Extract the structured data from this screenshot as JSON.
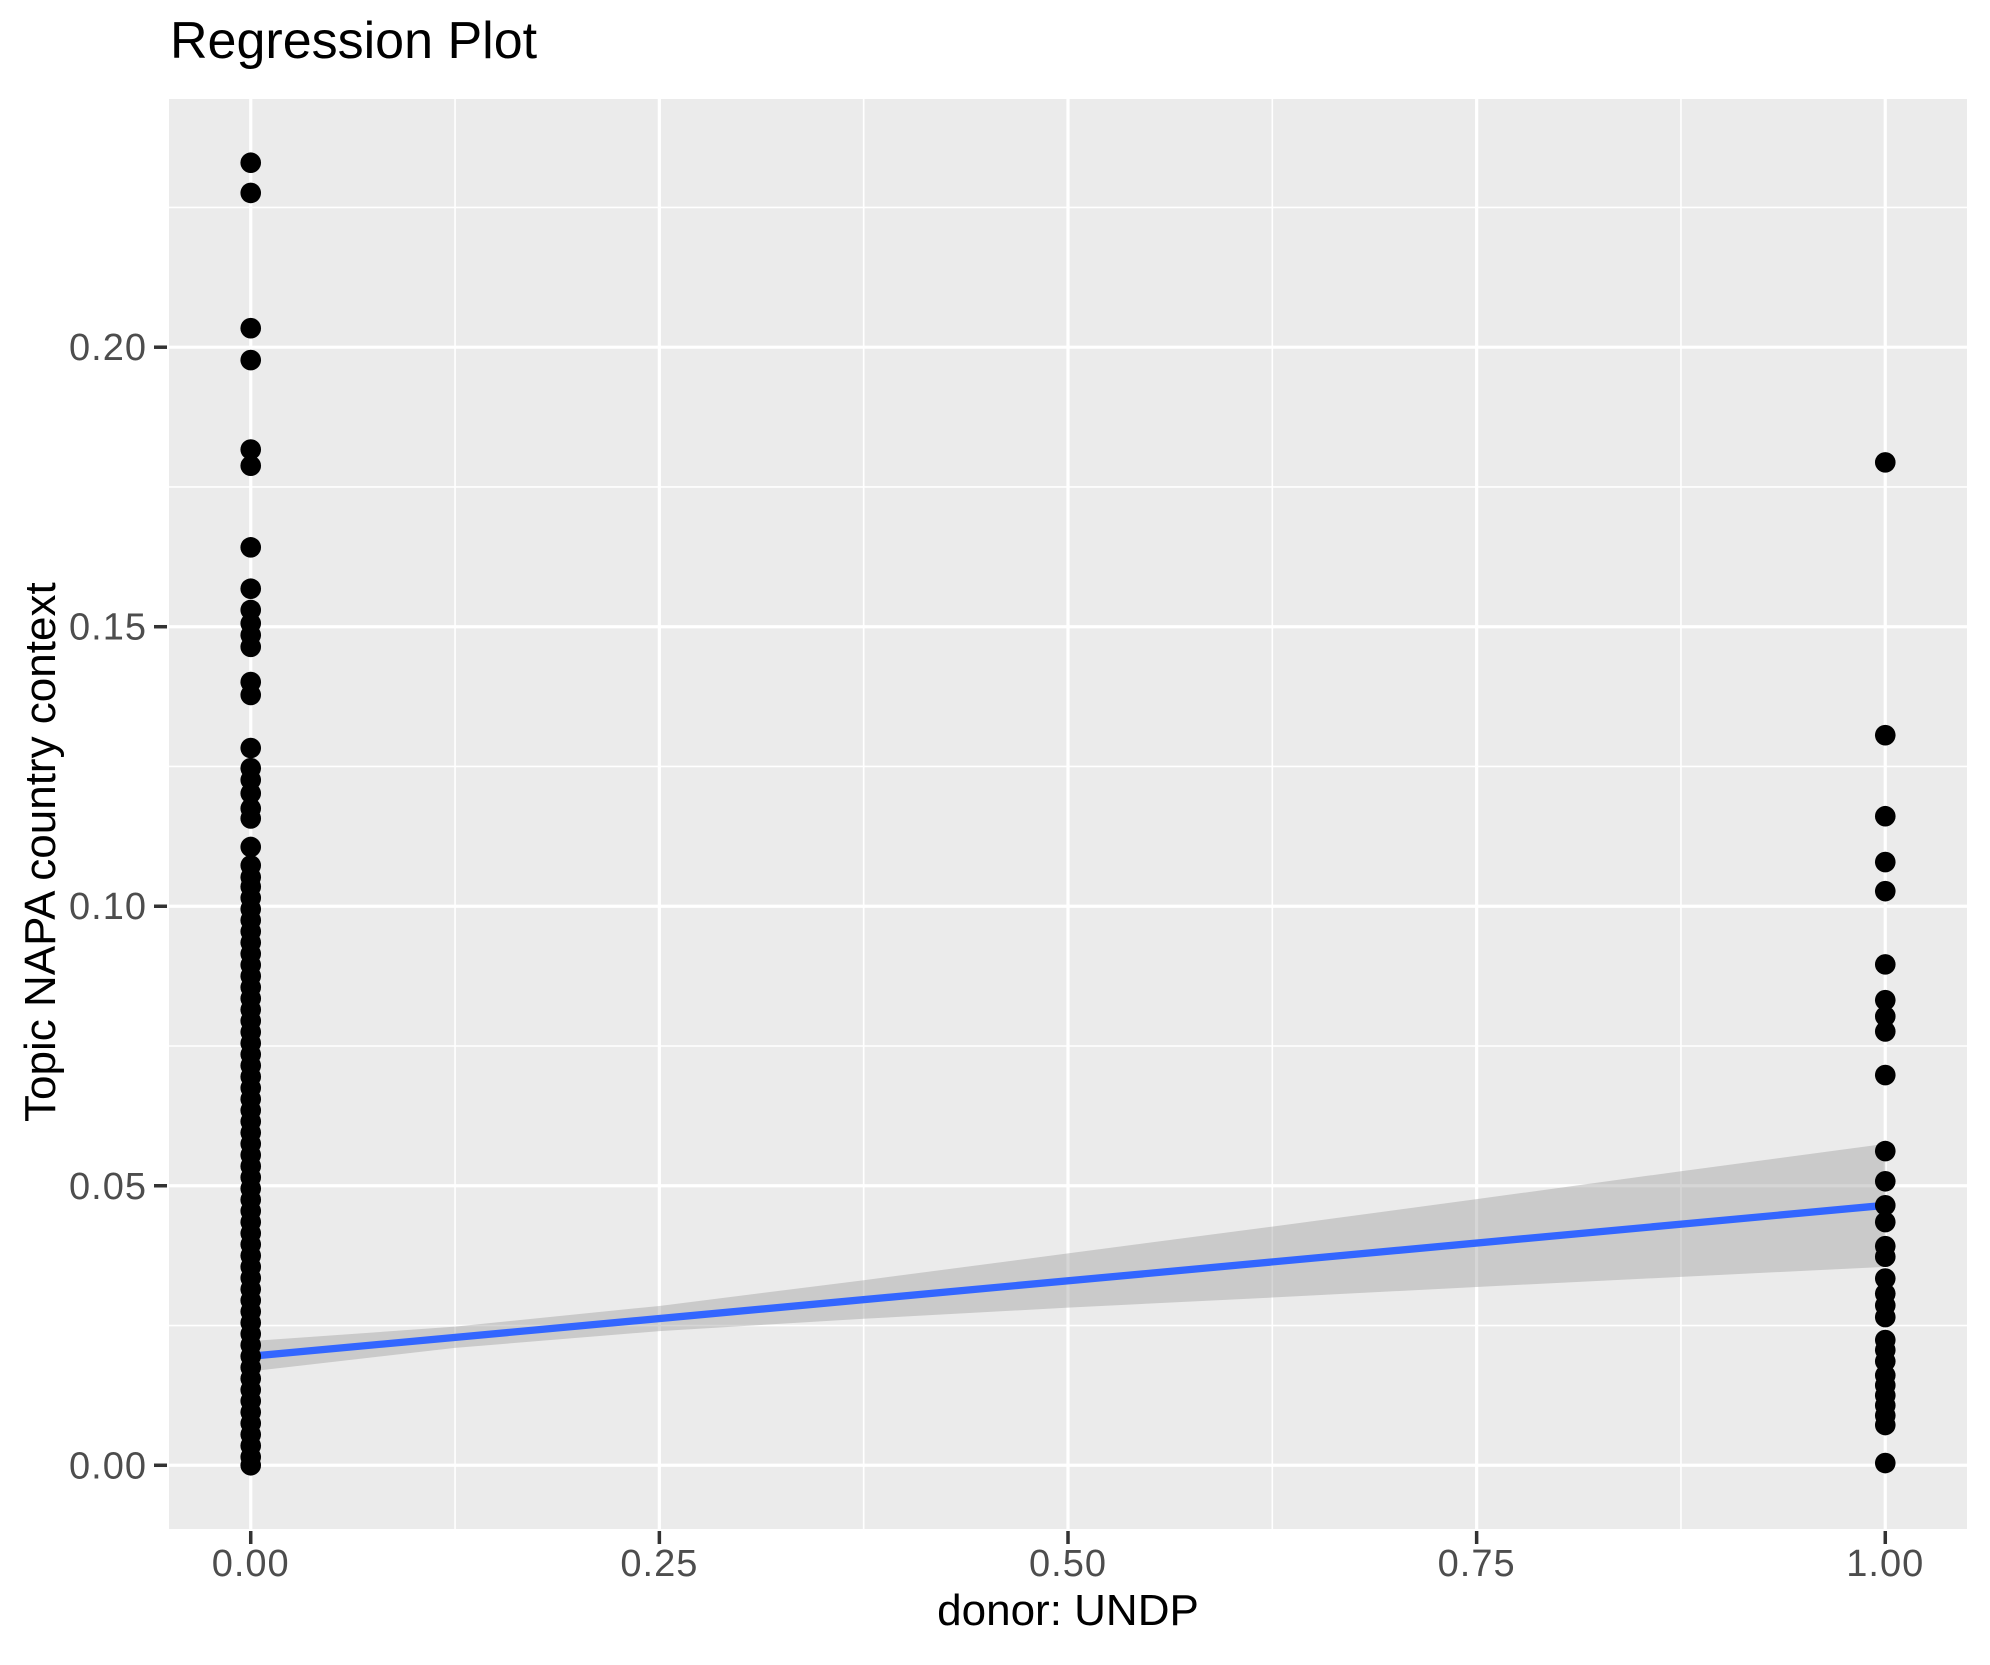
{
  "chart_data": {
    "type": "scatter",
    "title": "Regression Plot",
    "xlabel": "donor: UNDP",
    "ylabel": "Topic NAPA country context",
    "legend": "none",
    "grid": "major+minor white on gray panel",
    "xlim": [
      -0.05,
      1.05
    ],
    "ylim": [
      -0.0114,
      0.2444
    ],
    "x_ticks": {
      "values": [
        0,
        0.25,
        0.5,
        0.75,
        1.0
      ],
      "labels": [
        "0.00",
        "0.25",
        "0.50",
        "0.75",
        "1.00"
      ]
    },
    "y_ticks": {
      "values": [
        0,
        0.05,
        0.1,
        0.15,
        0.2
      ],
      "labels": [
        "0.00",
        "0.05",
        "0.10",
        "0.15",
        "0.20"
      ]
    },
    "series": [
      {
        "name": "donor UNDP = 0",
        "x": 0,
        "y": [
          0.233,
          0.2276,
          0.2034,
          0.1977,
          0.1817,
          0.1788,
          0.1642,
          0.1568,
          0.153,
          0.1506,
          0.1485,
          0.1464,
          0.1401,
          0.1378,
          0.1283,
          0.1247,
          0.1226,
          0.1202,
          0.1175,
          0.1157,
          0.1106,
          0.1073,
          0.1052,
          0.1035,
          0.1015,
          0.0995,
          0.0975,
          0.0955,
          0.0935,
          0.0915,
          0.0895,
          0.0875,
          0.0855,
          0.0835,
          0.0815,
          0.0795,
          0.0775,
          0.0755,
          0.0735,
          0.0715,
          0.0695,
          0.0675,
          0.0655,
          0.0635,
          0.0615,
          0.0595,
          0.0575,
          0.0555,
          0.0535,
          0.0515,
          0.0495,
          0.0475,
          0.0455,
          0.0435,
          0.0415,
          0.0395,
          0.0375,
          0.0355,
          0.0335,
          0.0315,
          0.0295,
          0.0275,
          0.0255,
          0.0235,
          0.0215,
          0.0195,
          0.0175,
          0.0155,
          0.0135,
          0.0115,
          0.0095,
          0.0075,
          0.0055,
          0.0035,
          0.0015,
          0.0
        ]
      },
      {
        "name": "donor UNDP = 1",
        "x": 1,
        "y": [
          0.1794,
          0.1306,
          0.1161,
          0.1079,
          0.1027,
          0.0896,
          0.0832,
          0.0803,
          0.0776,
          0.0698,
          0.0562,
          0.0508,
          0.0465,
          0.0435,
          0.0392,
          0.0373,
          0.0334,
          0.0307,
          0.0286,
          0.0265,
          0.0224,
          0.0206,
          0.0186,
          0.0161,
          0.0143,
          0.0125,
          0.0107,
          0.0089,
          0.0072,
          0.0004
        ]
      }
    ],
    "regression_line": {
      "x": [
        0,
        1
      ],
      "y": [
        0.0195,
        0.0465
      ]
    },
    "ci_band": {
      "points": [
        {
          "x": 0.0,
          "lo": 0.0168,
          "hi": 0.0222
        },
        {
          "x": 0.125,
          "lo": 0.021,
          "hi": 0.0248
        },
        {
          "x": 0.25,
          "lo": 0.024,
          "hi": 0.0285
        },
        {
          "x": 0.375,
          "lo": 0.0262,
          "hi": 0.0331
        },
        {
          "x": 0.5,
          "lo": 0.0282,
          "hi": 0.0379
        },
        {
          "x": 0.625,
          "lo": 0.03,
          "hi": 0.0427
        },
        {
          "x": 0.75,
          "lo": 0.0319,
          "hi": 0.0476
        },
        {
          "x": 0.875,
          "lo": 0.0337,
          "hi": 0.0526
        },
        {
          "x": 1.0,
          "lo": 0.0355,
          "hi": 0.0575
        }
      ]
    },
    "colors": {
      "plot_bg": "#FFFFFF",
      "panel_bg": "#EBEBEB",
      "grid": "#FFFFFF",
      "point": "#000000",
      "line": "#3366FF",
      "band": "#999999",
      "band_alpha": 0.4,
      "tick_label": "#4D4D4D",
      "tick_mark": "#333333",
      "text": "#000000"
    }
  }
}
